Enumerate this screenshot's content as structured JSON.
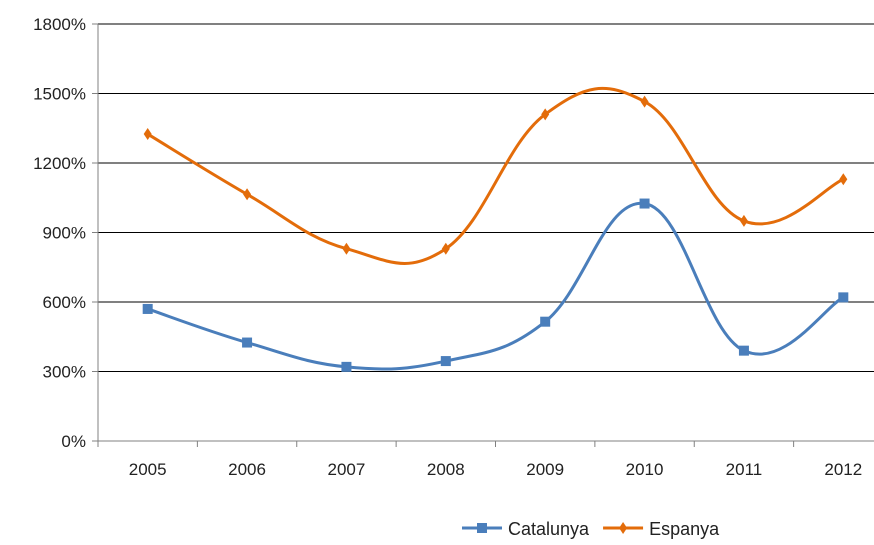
{
  "chart_data": {
    "type": "line",
    "categories": [
      "2005",
      "2006",
      "2007",
      "2008",
      "2009",
      "2010",
      "2011",
      "2012"
    ],
    "series": [
      {
        "name": "Catalunya",
        "color": "#4a7ebb",
        "marker": "square",
        "values": [
          570,
          425,
          320,
          345,
          515,
          1025,
          390,
          620
        ]
      },
      {
        "name": "Espanya",
        "color": "#e36c0a",
        "marker": "diamond",
        "values": [
          1325,
          1065,
          830,
          830,
          1410,
          1465,
          950,
          1130
        ]
      }
    ],
    "y_axis": {
      "min": 0,
      "max": 1800,
      "step": 300,
      "tick_labels": [
        "0%",
        "300%",
        "600%",
        "900%",
        "1200%",
        "1500%",
        "1800%"
      ]
    },
    "grid": {
      "horizontal": true
    },
    "smooth": true,
    "legend": "bottom-right",
    "axis_color": "#808080",
    "grid_color": "#000000"
  }
}
